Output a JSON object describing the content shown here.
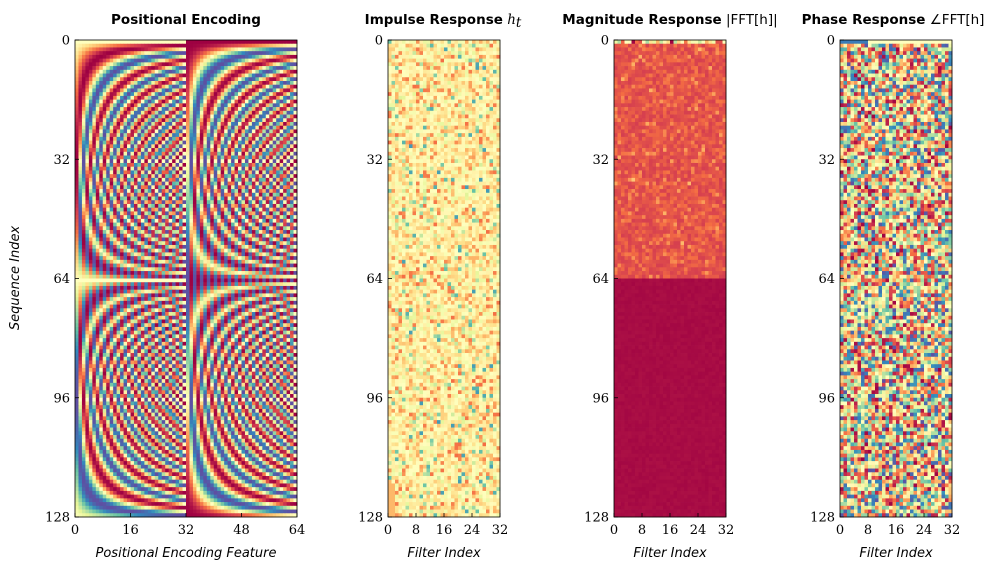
{
  "chart_data": [
    {
      "type": "heatmap",
      "title": "Positional Encoding",
      "xlabel": "Positional Encoding Feature",
      "ylabel": "Sequence Index",
      "xlim": [
        0,
        64
      ],
      "ylim": [
        0,
        128
      ],
      "xticks": [
        "0",
        "16",
        "32",
        "48",
        "64"
      ],
      "yticks": [
        "0",
        "32",
        "64",
        "96",
        "128"
      ],
      "colormap": "Spectral",
      "description_values": {
        "features": 64,
        "positions": 128,
        "pattern": "sine features 0-31, cosine features 32-63, wavelength increasing with feature index; period 128"
      }
    },
    {
      "type": "heatmap",
      "title": "Impulse Response",
      "title_symbol": "h",
      "title_sub": "t",
      "xlabel": "Filter Index",
      "xlim": [
        0,
        32
      ],
      "ylim": [
        0,
        128
      ],
      "xticks": [
        "0",
        "8",
        "16",
        "24",
        "32"
      ],
      "yticks": [
        "0",
        "32",
        "64",
        "96",
        "128"
      ],
      "colormap": "Spectral",
      "description_values": {
        "filters": 32,
        "positions": 128,
        "pattern": "mostly near-zero values with sparse small positive and negative entries"
      }
    },
    {
      "type": "heatmap",
      "title": "Magnitude Response",
      "title_math": "|FFT[h]|",
      "xlabel": "Filter Index",
      "xlim": [
        0,
        32
      ],
      "ylim": [
        0,
        128
      ],
      "xticks": [
        "0",
        "8",
        "16",
        "24",
        "32"
      ],
      "yticks": [
        "0",
        "32",
        "64",
        "96",
        "128"
      ],
      "colormap": "Spectral",
      "description_values": {
        "filters": 32,
        "positions": 128,
        "pattern": "variable magnitudes for indices 0-63, near-zero for 64-128"
      }
    },
    {
      "type": "heatmap",
      "title": "Phase Response",
      "title_math": "∠FFT[h]",
      "xlabel": "Filter Index",
      "xlim": [
        0,
        32
      ],
      "ylim": [
        0,
        128
      ],
      "xticks": [
        "0",
        "8",
        "16",
        "24",
        "32"
      ],
      "yticks": [
        "0",
        "32",
        "64",
        "96",
        "128"
      ],
      "colormap": "Spectral",
      "description_values": {
        "filters": 32,
        "positions": 128,
        "pattern": "phase values spread across full range, noisy"
      }
    }
  ],
  "colormap_stops": [
    "#9e0142",
    "#d53e4f",
    "#f46d43",
    "#fdae61",
    "#fee08b",
    "#ffffbf",
    "#e6f598",
    "#abdda4",
    "#66c2a5",
    "#3288bd",
    "#5e4fa2"
  ]
}
